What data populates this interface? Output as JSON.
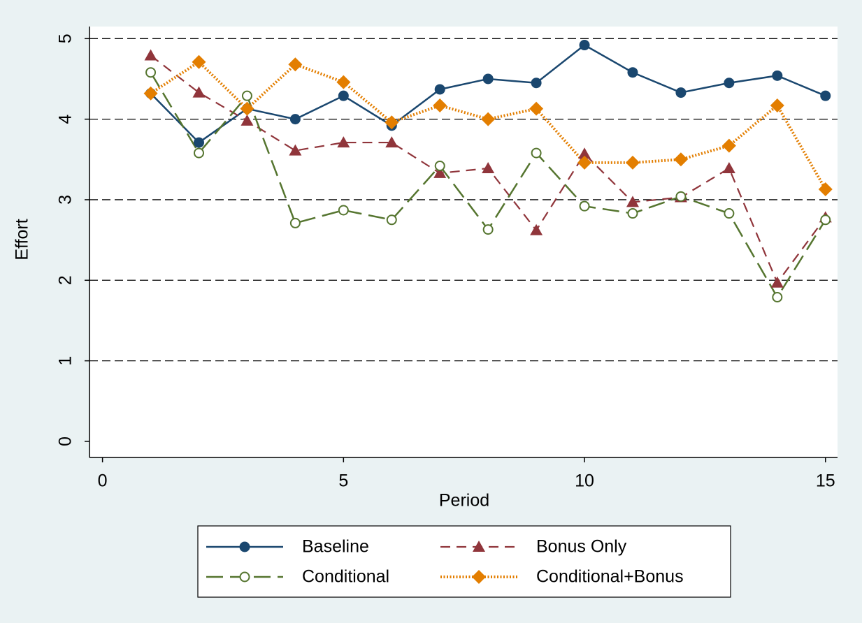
{
  "chart_data": {
    "type": "line",
    "x_label": "Period",
    "y_label": "Effort",
    "x": [
      1,
      2,
      3,
      4,
      5,
      6,
      7,
      8,
      9,
      10,
      11,
      12,
      13,
      14,
      15
    ],
    "series": [
      {
        "name": "Baseline",
        "color": "#1a476f",
        "line_style": "solid",
        "marker": "circle",
        "values": [
          4.32,
          3.71,
          4.13,
          4.0,
          4.29,
          3.92,
          4.37,
          4.5,
          4.45,
          4.92,
          4.58,
          4.33,
          4.45,
          4.54,
          4.29
        ]
      },
      {
        "name": "Bonus Only",
        "color": "#90353b",
        "line_style": "dashed",
        "marker": "triangle",
        "values": [
          4.79,
          4.33,
          3.98,
          3.61,
          3.71,
          3.71,
          3.33,
          3.39,
          2.62,
          3.57,
          2.97,
          3.03,
          3.39,
          1.97,
          2.78
        ]
      },
      {
        "name": "Conditional",
        "color": "#55752f",
        "line_style": "longdash",
        "marker": "circle-open",
        "values": [
          4.58,
          3.58,
          4.29,
          2.71,
          2.87,
          2.75,
          3.42,
          2.63,
          3.58,
          2.92,
          2.83,
          3.04,
          2.83,
          1.79,
          2.75
        ]
      },
      {
        "name": "Conditional+Bonus",
        "color": "#e37e00",
        "line_style": "dotted",
        "marker": "diamond",
        "values": [
          4.32,
          4.71,
          4.13,
          4.68,
          4.46,
          3.96,
          4.17,
          4.0,
          4.13,
          3.46,
          3.46,
          3.5,
          3.67,
          4.17,
          3.13
        ]
      }
    ],
    "xlim": [
      -0.27,
      15.25
    ],
    "xticks": [
      0,
      5,
      10,
      15
    ],
    "ylim": [
      -0.2,
      5.15
    ],
    "yticks": [
      0,
      1,
      2,
      3,
      4,
      5
    ],
    "grid": true,
    "legend": "bottom"
  }
}
